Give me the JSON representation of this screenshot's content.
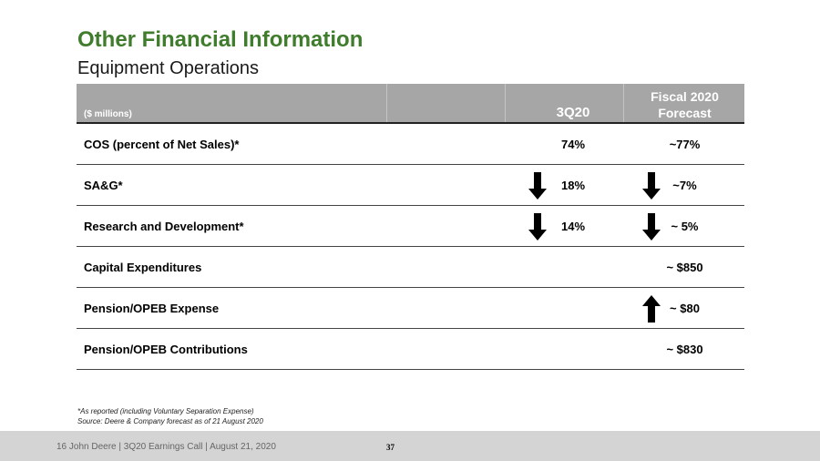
{
  "header": {
    "title": "Other Financial Information",
    "subtitle": "Equipment Operations"
  },
  "table": {
    "units_label": "($ millions)",
    "col_3q": "3Q20",
    "col_forecast_line1": "Fiscal 2020",
    "col_forecast_line2": "Forecast",
    "rows": [
      {
        "label": "COS (percent of Net Sales)*",
        "v3q": "74%",
        "vfc": "~77%",
        "arrow_3q": "",
        "arrow_fc": ""
      },
      {
        "label": "SA&G*",
        "v3q": "18%",
        "vfc": "~7%",
        "arrow_3q": "down",
        "arrow_fc": "down"
      },
      {
        "label": "Research and Development*",
        "v3q": "14%",
        "vfc": "~ 5%",
        "arrow_3q": "down",
        "arrow_fc": "down"
      },
      {
        "label": "Capital Expenditures",
        "v3q": "",
        "vfc": "~ $850",
        "arrow_3q": "",
        "arrow_fc": ""
      },
      {
        "label": "Pension/OPEB Expense",
        "v3q": "",
        "vfc": "~ $80",
        "arrow_3q": "",
        "arrow_fc": "up"
      },
      {
        "label": "Pension/OPEB Contributions",
        "v3q": "",
        "vfc": "~ $830",
        "arrow_3q": "",
        "arrow_fc": ""
      }
    ]
  },
  "notes": {
    "line1": "*As reported (including Voluntary Separation Expense)",
    "line2": "Source: Deere & Company forecast as of 21 August 2020"
  },
  "footer": {
    "text": "16    John Deere | 3Q20 Earnings Call | August 21, 2020",
    "page_number": "37"
  },
  "colors": {
    "title": "#3f7d2c",
    "header_bg": "#a6a6a6",
    "footer_bg": "#d4d4d4"
  }
}
